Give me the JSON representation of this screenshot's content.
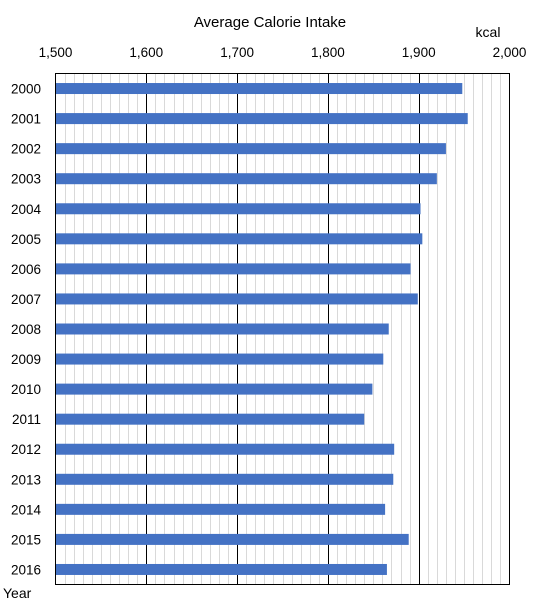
{
  "chart_data": {
    "type": "bar",
    "orientation": "horizontal",
    "title": "Average Calorie Intake",
    "unit_label": "kcal",
    "ylabel": "Year",
    "xlim": [
      1500,
      2000
    ],
    "x_ticks": [
      "1,500",
      "1,600",
      "1,700",
      "1,800",
      "1,900",
      "2,000"
    ],
    "x_axis_position": "top",
    "grid": true,
    "categories": [
      "2000",
      "2001",
      "2002",
      "2003",
      "2004",
      "2005",
      "2006",
      "2007",
      "2008",
      "2009",
      "2010",
      "2011",
      "2012",
      "2013",
      "2014",
      "2015",
      "2016"
    ],
    "values": [
      1948,
      1954,
      1930,
      1920,
      1902,
      1904,
      1891,
      1899,
      1867,
      1861,
      1849,
      1840,
      1873,
      1872,
      1863,
      1889,
      1865
    ],
    "bar_color": "#4472C4"
  }
}
